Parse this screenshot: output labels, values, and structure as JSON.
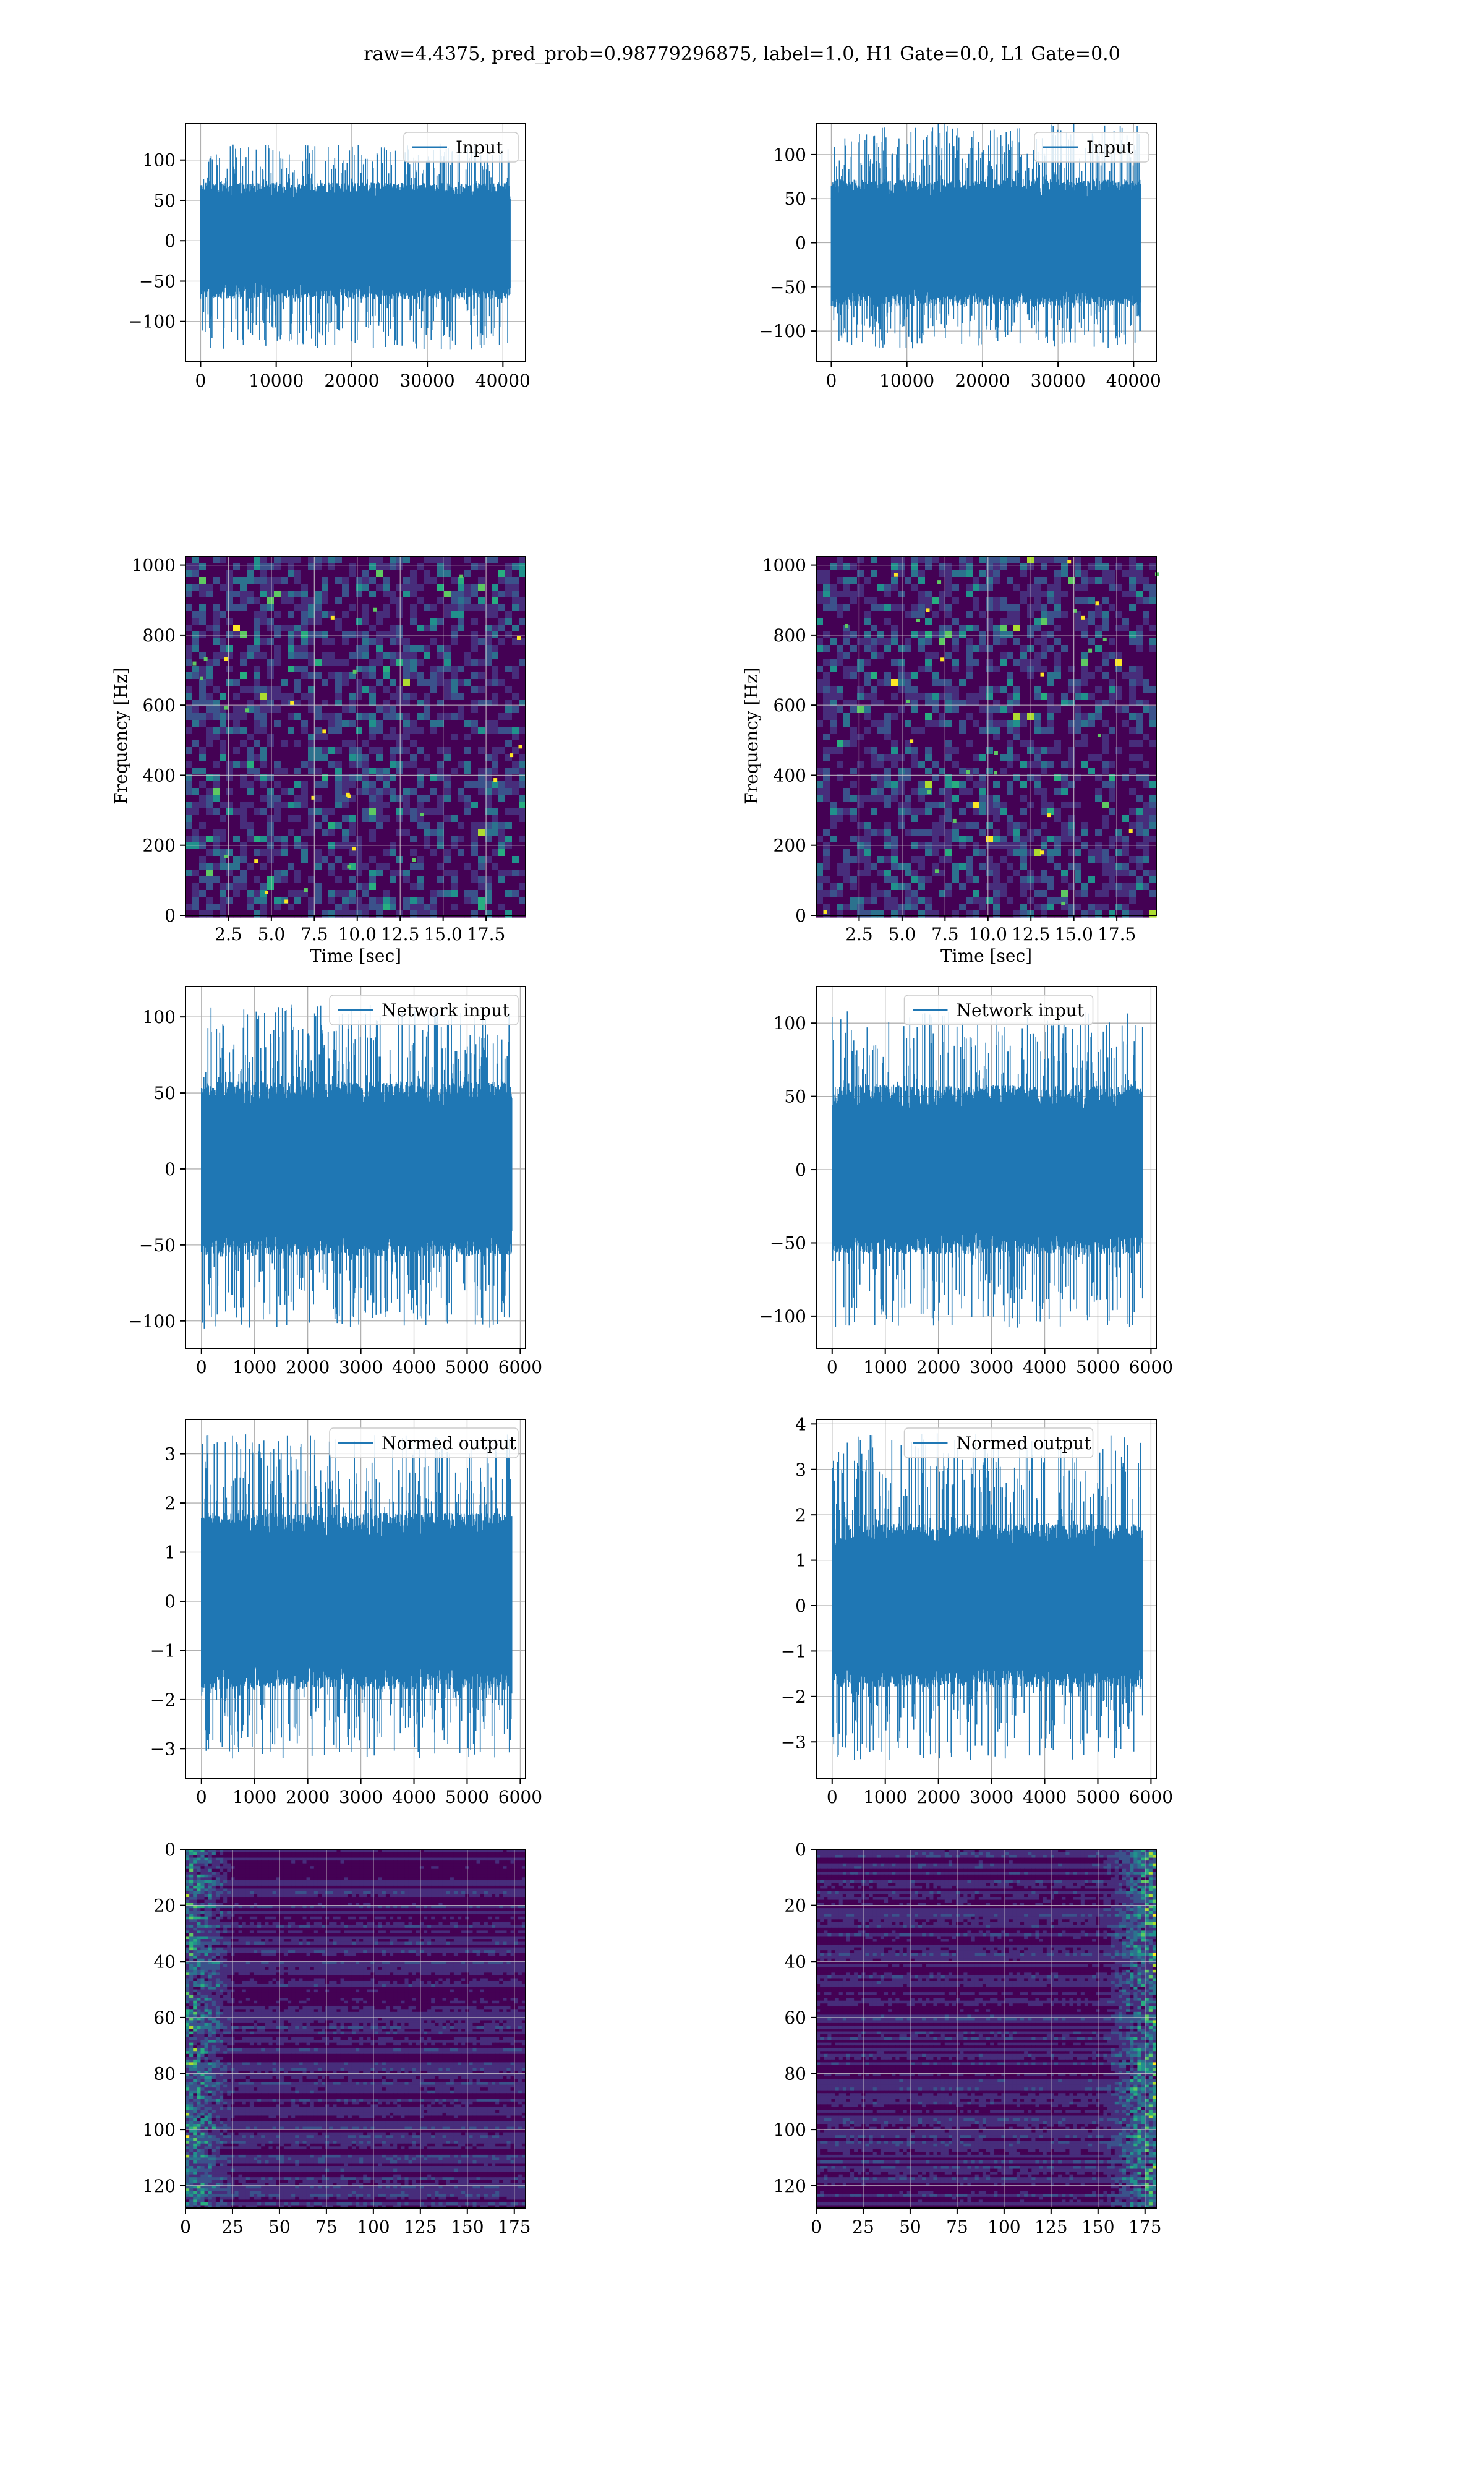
{
  "figure": {
    "title": "raw=4.4375, pred_prob=0.98779296875, label=1.0, H1 Gate=0.0, L1 Gate=0.0"
  },
  "colors": {
    "line": "#1f77b4",
    "grid": "#b0b0b0",
    "axes": "#000000",
    "viridis": [
      "#440154",
      "#3b528b",
      "#21918c",
      "#5ec962",
      "#fde725"
    ]
  },
  "chart_data": [
    {
      "id": "input-left",
      "type": "line",
      "legend": "Input",
      "legend_loc": "upper right",
      "grid": true,
      "xlim": [
        -2000,
        43000
      ],
      "ylim": [
        -150,
        145
      ],
      "xticks": [
        0,
        10000,
        20000,
        30000,
        40000
      ],
      "xticklabels": [
        "0",
        "10000",
        "20000",
        "30000",
        "40000"
      ],
      "yticks": [
        -100,
        -50,
        0,
        50,
        100
      ],
      "yticklabels": [
        "−100",
        "−50",
        "0",
        "50",
        "100"
      ],
      "x": [
        0,
        40960
      ],
      "y_range": [
        -135,
        120
      ],
      "envelope_abs": 60,
      "n_points": 40960
    },
    {
      "id": "input-right",
      "type": "line",
      "legend": "Input",
      "legend_loc": "upper right",
      "grid": true,
      "xlim": [
        -2000,
        43000
      ],
      "ylim": [
        -135,
        135
      ],
      "xticks": [
        0,
        10000,
        20000,
        30000,
        40000
      ],
      "xticklabels": [
        "0",
        "10000",
        "20000",
        "30000",
        "40000"
      ],
      "yticks": [
        -100,
        -50,
        0,
        50,
        100
      ],
      "yticklabels": [
        "−100",
        "−50",
        "0",
        "50",
        "100"
      ],
      "x": [
        0,
        40960
      ],
      "y_range": [
        -120,
        135
      ],
      "envelope_abs": 60,
      "n_points": 40960
    },
    {
      "id": "spectrogram-left",
      "type": "heatmap",
      "grid": true,
      "xlim": [
        0,
        19.8
      ],
      "ylim": [
        0,
        1024
      ],
      "xlabel": "Time [sec]",
      "ylabel": "Frequency [Hz]",
      "xticks": [
        2.5,
        5.0,
        7.5,
        10.0,
        12.5,
        15.0,
        17.5
      ],
      "xticklabels": [
        "2.5",
        "5.0",
        "7.5",
        "10.0",
        "12.5",
        "15.0",
        "17.5"
      ],
      "yticks": [
        0,
        200,
        400,
        600,
        800,
        1000
      ],
      "yticklabels": [
        "0",
        "200",
        "400",
        "600",
        "800",
        "1000"
      ],
      "colormap": "viridis"
    },
    {
      "id": "spectrogram-right",
      "type": "heatmap",
      "grid": true,
      "xlim": [
        0,
        19.8
      ],
      "ylim": [
        0,
        1024
      ],
      "xlabel": "Time [sec]",
      "ylabel": "Frequency [Hz]",
      "xticks": [
        2.5,
        5.0,
        7.5,
        10.0,
        12.5,
        15.0,
        17.5
      ],
      "xticklabels": [
        "2.5",
        "5.0",
        "7.5",
        "10.0",
        "12.5",
        "15.0",
        "17.5"
      ],
      "yticks": [
        0,
        200,
        400,
        600,
        800,
        1000
      ],
      "yticklabels": [
        "0",
        "200",
        "400",
        "600",
        "800",
        "1000"
      ],
      "colormap": "viridis"
    },
    {
      "id": "network-input-left",
      "type": "line",
      "legend": "Network input",
      "legend_loc": "upper right",
      "grid": true,
      "xlim": [
        -300,
        6100
      ],
      "ylim": [
        -118,
        120
      ],
      "xticks": [
        0,
        1000,
        2000,
        3000,
        4000,
        5000,
        6000
      ],
      "xticklabels": [
        "0",
        "1000",
        "2000",
        "3000",
        "4000",
        "5000",
        "6000"
      ],
      "yticks": [
        -100,
        -50,
        0,
        50,
        100
      ],
      "yticklabels": [
        "−100",
        "−50",
        "0",
        "50",
        "100"
      ],
      "x": [
        0,
        5840
      ],
      "y_range": [
        -105,
        108
      ],
      "envelope_abs": 48,
      "n_points": 5840
    },
    {
      "id": "network-input-right",
      "type": "line",
      "legend": "Network input",
      "legend_loc": "upper center",
      "grid": true,
      "xlim": [
        -300,
        6100
      ],
      "ylim": [
        -122,
        125
      ],
      "xticks": [
        0,
        1000,
        2000,
        3000,
        4000,
        5000,
        6000
      ],
      "xticklabels": [
        "0",
        "1000",
        "2000",
        "3000",
        "4000",
        "5000",
        "6000"
      ],
      "yticks": [
        -100,
        -50,
        0,
        50,
        100
      ],
      "yticklabels": [
        "−100",
        "−50",
        "0",
        "50",
        "100"
      ],
      "x": [
        0,
        5840
      ],
      "y_range": [
        -108,
        108
      ],
      "envelope_abs": 48,
      "n_points": 5840
    },
    {
      "id": "normed-output-left",
      "type": "line",
      "legend": "Normed output",
      "legend_loc": "upper right",
      "grid": true,
      "xlim": [
        -300,
        6100
      ],
      "ylim": [
        -3.6,
        3.7
      ],
      "xticks": [
        0,
        1000,
        2000,
        3000,
        4000,
        5000,
        6000
      ],
      "xticklabels": [
        "0",
        "1000",
        "2000",
        "3000",
        "4000",
        "5000",
        "6000"
      ],
      "yticks": [
        -3,
        -2,
        -1,
        0,
        1,
        2,
        3
      ],
      "yticklabels": [
        "−3",
        "−2",
        "−1",
        "0",
        "1",
        "2",
        "3"
      ],
      "x": [
        0,
        5840
      ],
      "y_range": [
        -3.2,
        3.4
      ],
      "envelope_abs": 1.5,
      "n_points": 5840
    },
    {
      "id": "normed-output-right",
      "type": "line",
      "legend": "Normed output",
      "legend_loc": "upper center",
      "grid": true,
      "xlim": [
        -300,
        6100
      ],
      "ylim": [
        -3.8,
        4.1
      ],
      "xticks": [
        0,
        1000,
        2000,
        3000,
        4000,
        5000,
        6000
      ],
      "xticklabels": [
        "0",
        "1000",
        "2000",
        "3000",
        "4000",
        "5000",
        "6000"
      ],
      "yticks": [
        -3,
        -2,
        -1,
        0,
        1,
        2,
        3,
        4
      ],
      "yticklabels": [
        "−3",
        "−2",
        "−1",
        "0",
        "1",
        "2",
        "3",
        "4"
      ],
      "x": [
        0,
        5840
      ],
      "y_range": [
        -3.4,
        3.8
      ],
      "envelope_abs": 1.5,
      "n_points": 5840
    },
    {
      "id": "feature-map-left",
      "type": "heatmap",
      "grid": true,
      "xlim": [
        0,
        181
      ],
      "ylim": [
        128,
        0
      ],
      "xticks": [
        0,
        25,
        50,
        75,
        100,
        125,
        150,
        175
      ],
      "xticklabels": [
        "0",
        "25",
        "50",
        "75",
        "100",
        "125",
        "150",
        "175"
      ],
      "yticks": [
        0,
        20,
        40,
        60,
        80,
        100,
        120
      ],
      "yticklabels": [
        "0",
        "20",
        "40",
        "60",
        "80",
        "100",
        "120"
      ],
      "colormap": "viridis",
      "bright_columns": "left"
    },
    {
      "id": "feature-map-right",
      "type": "heatmap",
      "grid": true,
      "xlim": [
        0,
        181
      ],
      "ylim": [
        128,
        0
      ],
      "xticks": [
        0,
        25,
        50,
        75,
        100,
        125,
        150,
        175
      ],
      "xticklabels": [
        "0",
        "25",
        "50",
        "75",
        "100",
        "125",
        "150",
        "175"
      ],
      "yticks": [
        0,
        20,
        40,
        60,
        80,
        100,
        120
      ],
      "yticklabels": [
        "0",
        "20",
        "40",
        "60",
        "80",
        "100",
        "120"
      ],
      "colormap": "viridis",
      "bright_columns": "right"
    }
  ]
}
